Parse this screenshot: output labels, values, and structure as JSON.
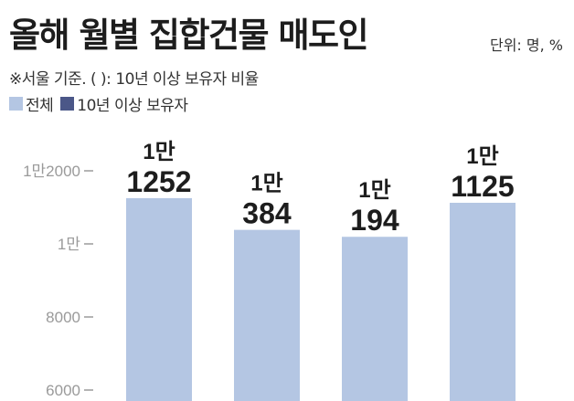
{
  "title": "올해 월별 집합건물 매도인",
  "unit_note": "단위: 명, %",
  "note": "※서울 기준. ( ): 10년 이상 보유자 비율",
  "legend": [
    {
      "name": "전체",
      "color": "#b4c6e3"
    },
    {
      "name": "10년 이상 보유자",
      "color": "#4b5788"
    }
  ],
  "chart_data": {
    "type": "bar",
    "categories": [
      "",
      "",
      "",
      ""
    ],
    "series": [
      {
        "name": "전체",
        "values": [
          11252,
          10384,
          10194,
          11125
        ]
      }
    ],
    "value_labels": [
      {
        "top": "1만",
        "bottom": "1252"
      },
      {
        "top": "1만",
        "bottom": "384"
      },
      {
        "top": "1만",
        "bottom": "194"
      },
      {
        "top": "1만",
        "bottom": "1125"
      }
    ],
    "yticks": [
      {
        "value": 12000,
        "label": "1만2000"
      },
      {
        "value": 10000,
        "label": "1만"
      },
      {
        "value": 8000,
        "label": "8000"
      },
      {
        "value": 6000,
        "label": "6000"
      }
    ],
    "ylim": [
      5700,
      14500
    ],
    "bar_color": "#b4c6e3",
    "grid": false
  }
}
